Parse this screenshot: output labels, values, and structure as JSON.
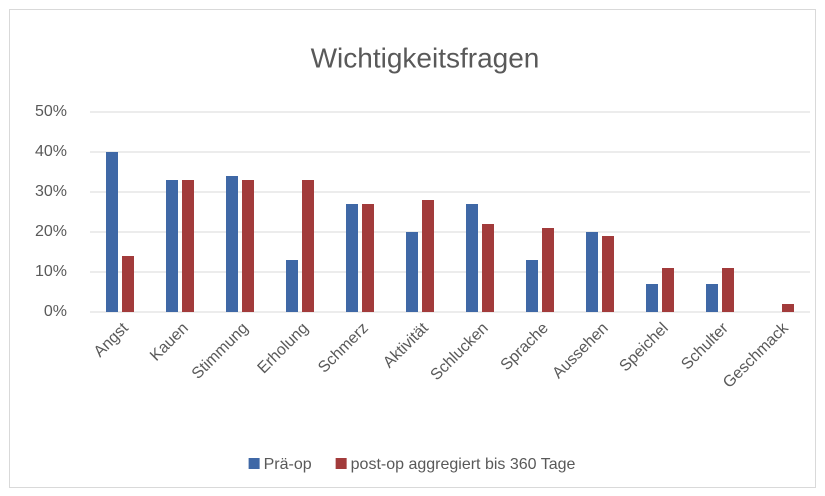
{
  "chart_data": {
    "type": "bar",
    "title": "Wichtigkeitsfragen",
    "categories": [
      "Angst",
      "Kauen",
      "Stimmung",
      "Erholung",
      "Schmerz",
      "Aktivität",
      "Schlucken",
      "Sprache",
      "Aussehen",
      "Speichel",
      "Schulter",
      "Geschmack"
    ],
    "series": [
      {
        "name": "Prä-op",
        "color": "#3f68a6",
        "values": [
          40,
          33,
          34,
          13,
          27,
          20,
          27,
          13,
          20,
          7,
          7,
          0
        ]
      },
      {
        "name": "post-op aggregiert bis 360 Tage",
        "color": "#a23b3b",
        "values": [
          14,
          33,
          33,
          33,
          27,
          28,
          22,
          21,
          19,
          11,
          11,
          2
        ]
      }
    ],
    "ylim": [
      0,
      50
    ],
    "yticks": [
      {
        "value": 0,
        "label": "0%"
      },
      {
        "value": 10,
        "label": "10%"
      },
      {
        "value": 20,
        "label": "20%"
      },
      {
        "value": 30,
        "label": "30%"
      },
      {
        "value": 40,
        "label": "40%"
      },
      {
        "value": 50,
        "label": "50%"
      }
    ],
    "grid": true,
    "legend": "bottom"
  }
}
